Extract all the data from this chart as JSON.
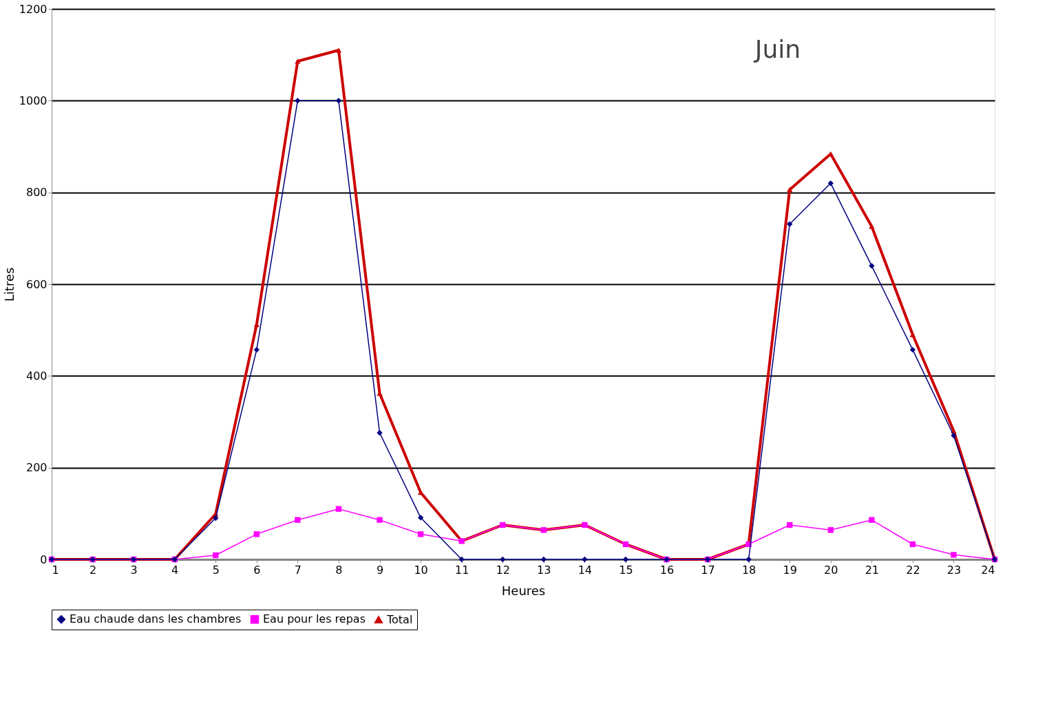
{
  "chart_data": {
    "type": "line",
    "xlabel": "Heures",
    "ylabel": "Litres",
    "x": [
      1,
      2,
      3,
      4,
      5,
      6,
      7,
      8,
      9,
      10,
      11,
      12,
      13,
      14,
      15,
      16,
      17,
      18,
      19,
      20,
      21,
      22,
      23,
      24
    ],
    "series": [
      {
        "name": "Eau chaude dans les chambres",
        "color": "#000080",
        "marker": "diamond",
        "values": [
          0,
          0,
          0,
          0,
          90,
          457,
          1000,
          1000,
          276,
          91,
          0,
          0,
          0,
          0,
          0,
          0,
          0,
          0,
          731,
          820,
          640,
          457,
          270,
          0
        ]
      },
      {
        "name": "Eau pour les repas",
        "color": "#ff00ff",
        "marker": "square",
        "values": [
          0,
          0,
          0,
          0,
          9,
          55,
          86,
          110,
          86,
          55,
          40,
          75,
          64,
          75,
          33,
          0,
          0,
          33,
          75,
          64,
          86,
          33,
          10,
          0
        ]
      },
      {
        "name": "Total",
        "color": "#cc0000",
        "marker": "triangle",
        "values": [
          0,
          0,
          0,
          0,
          99,
          512,
          1086,
          1110,
          362,
          146,
          40,
          75,
          64,
          75,
          33,
          0,
          0,
          33,
          806,
          884,
          726,
          490,
          280,
          0
        ]
      }
    ],
    "xlim": [
      1,
      24
    ],
    "xticks": [
      1,
      2,
      3,
      4,
      5,
      6,
      7,
      8,
      9,
      10,
      11,
      12,
      13,
      14,
      15,
      16,
      17,
      18,
      19,
      20,
      21,
      22,
      23,
      24
    ],
    "ylim": [
      0,
      1200
    ],
    "yticks": [
      0,
      200,
      400,
      600,
      800,
      1000,
      1200
    ],
    "grid": "y",
    "legend": "bottom",
    "annotations": [
      "Juin"
    ]
  }
}
